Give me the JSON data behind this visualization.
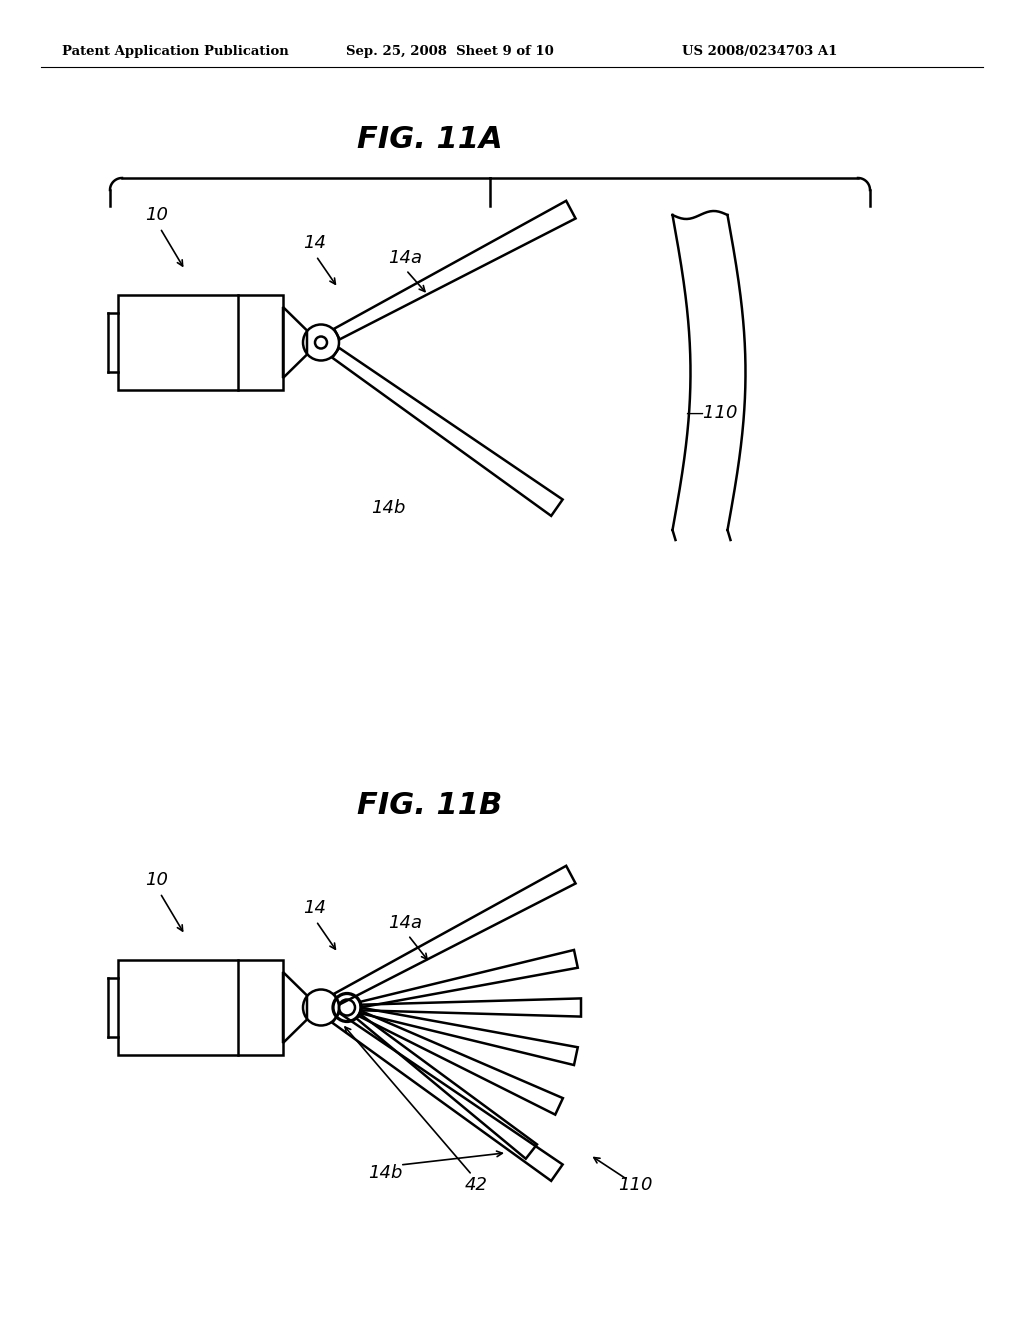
{
  "bg_color": "#ffffff",
  "header_left": "Patent Application Publication",
  "header_mid": "Sep. 25, 2008  Sheet 9 of 10",
  "header_right": "US 2008/0234703 A1",
  "fig11a_title": "FIG. 11A",
  "fig11b_title": "FIG. 11B",
  "lw": 1.8,
  "label_fontsize": 13,
  "title_fontsize": 22
}
